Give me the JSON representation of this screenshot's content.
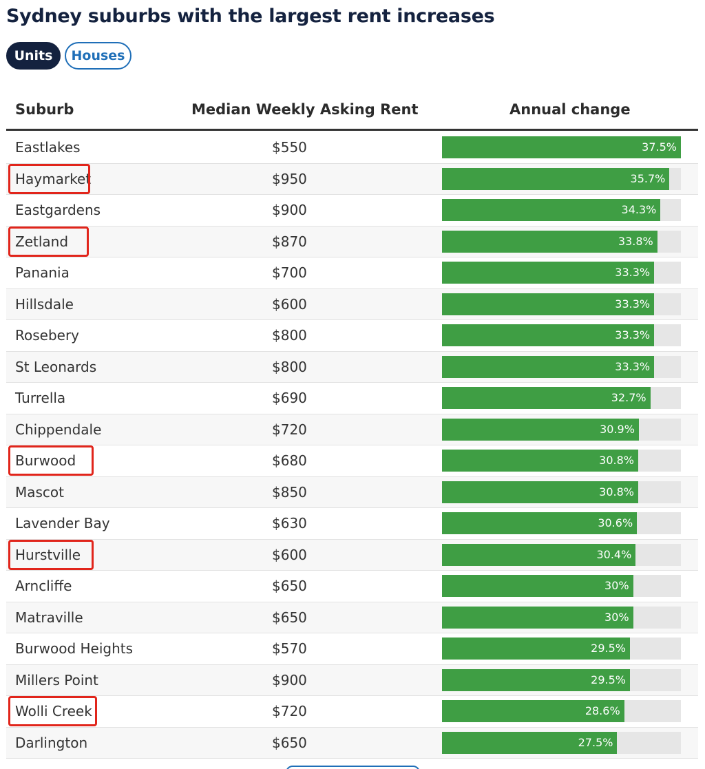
{
  "title": "Sydney suburbs with the largest rent increases",
  "toggle": {
    "active": "Units",
    "inactive": "Houses"
  },
  "columns": {
    "suburb": "Suburb",
    "rent": "Median Weekly Asking Rent",
    "change": "Annual change"
  },
  "colors": {
    "bar": "#3f9e44",
    "track": "#e6e6e6",
    "highlight": "#e1251b",
    "navy": "#14223f",
    "blue": "#1f6fb8"
  },
  "chart_data": {
    "type": "table",
    "title": "Sydney suburbs with the largest rent increases",
    "columns": [
      "Suburb",
      "Median Weekly Asking Rent",
      "Annual change"
    ],
    "rows": [
      {
        "suburb": "Eastlakes",
        "rent": "$550",
        "change": 37.5,
        "change_label": "37.5%",
        "highlighted": false
      },
      {
        "suburb": "Haymarket",
        "rent": "$950",
        "change": 35.7,
        "change_label": "35.7%",
        "highlighted": true
      },
      {
        "suburb": "Eastgardens",
        "rent": "$900",
        "change": 34.3,
        "change_label": "34.3%",
        "highlighted": false
      },
      {
        "suburb": "Zetland",
        "rent": "$870",
        "change": 33.8,
        "change_label": "33.8%",
        "highlighted": true
      },
      {
        "suburb": "Panania",
        "rent": "$700",
        "change": 33.3,
        "change_label": "33.3%",
        "highlighted": false
      },
      {
        "suburb": "Hillsdale",
        "rent": "$600",
        "change": 33.3,
        "change_label": "33.3%",
        "highlighted": false
      },
      {
        "suburb": "Rosebery",
        "rent": "$800",
        "change": 33.3,
        "change_label": "33.3%",
        "highlighted": false
      },
      {
        "suburb": "St Leonards",
        "rent": "$800",
        "change": 33.3,
        "change_label": "33.3%",
        "highlighted": false
      },
      {
        "suburb": "Turrella",
        "rent": "$690",
        "change": 32.7,
        "change_label": "32.7%",
        "highlighted": false
      },
      {
        "suburb": "Chippendale",
        "rent": "$720",
        "change": 30.9,
        "change_label": "30.9%",
        "highlighted": false
      },
      {
        "suburb": "Burwood",
        "rent": "$680",
        "change": 30.8,
        "change_label": "30.8%",
        "highlighted": true
      },
      {
        "suburb": "Mascot",
        "rent": "$850",
        "change": 30.8,
        "change_label": "30.8%",
        "highlighted": false
      },
      {
        "suburb": "Lavender Bay",
        "rent": "$630",
        "change": 30.6,
        "change_label": "30.6%",
        "highlighted": false
      },
      {
        "suburb": "Hurstville",
        "rent": "$600",
        "change": 30.4,
        "change_label": "30.4%",
        "highlighted": true
      },
      {
        "suburb": "Arncliffe",
        "rent": "$650",
        "change": 30,
        "change_label": "30%",
        "highlighted": false
      },
      {
        "suburb": "Matraville",
        "rent": "$650",
        "change": 30,
        "change_label": "30%",
        "highlighted": false
      },
      {
        "suburb": "Burwood Heights",
        "rent": "$570",
        "change": 29.5,
        "change_label": "29.5%",
        "highlighted": false
      },
      {
        "suburb": "Millers Point",
        "rent": "$900",
        "change": 29.5,
        "change_label": "29.5%",
        "highlighted": false
      },
      {
        "suburb": "Wolli Creek",
        "rent": "$720",
        "change": 28.6,
        "change_label": "28.6%",
        "highlighted": true
      },
      {
        "suburb": "Darlington",
        "rent": "$650",
        "change": 27.5,
        "change_label": "27.5%",
        "highlighted": false
      }
    ],
    "bar_max": 37.5
  }
}
